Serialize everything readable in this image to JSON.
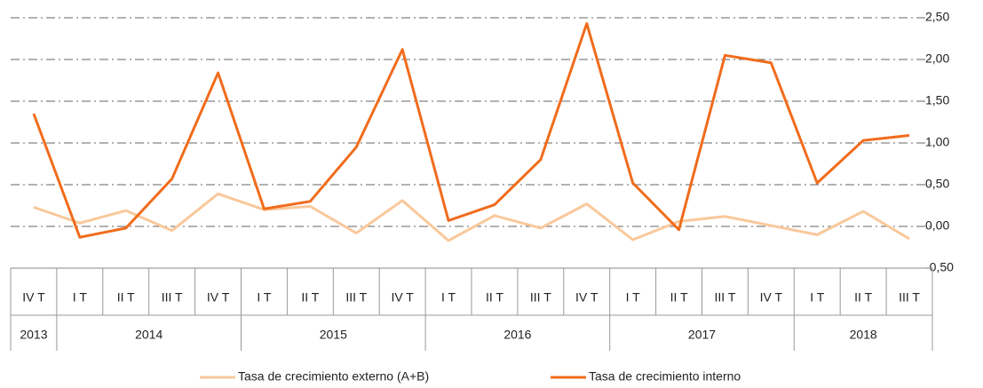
{
  "chart_data": {
    "type": "line",
    "categories": [
      "IV T",
      "I T",
      "II T",
      "III T",
      "IV T",
      "I T",
      "II T",
      "III T",
      "IV T",
      "I T",
      "II T",
      "III T",
      "IV T",
      "I T",
      "II T",
      "III T",
      "IV T",
      "I T",
      "II T",
      "III T"
    ],
    "year_groups": [
      {
        "label": "2013",
        "count": 1
      },
      {
        "label": "2014",
        "count": 4
      },
      {
        "label": "2015",
        "count": 4
      },
      {
        "label": "2016",
        "count": 4
      },
      {
        "label": "2017",
        "count": 4
      },
      {
        "label": "2018",
        "count": 3
      }
    ],
    "series": [
      {
        "name": "Tasa de crecimiento externo (A+B)",
        "color": "#f9c89b",
        "values": [
          0.23,
          0.04,
          0.19,
          -0.05,
          0.39,
          0.2,
          0.24,
          -0.08,
          0.31,
          -0.17,
          0.13,
          -0.02,
          0.27,
          -0.16,
          0.06,
          0.12,
          0.01,
          -0.1,
          0.18,
          -0.15
        ]
      },
      {
        "name": "Tasa de crecimiento interno",
        "color": "#f06c1c",
        "values": [
          1.35,
          -0.13,
          -0.02,
          0.57,
          1.84,
          0.21,
          0.3,
          0.95,
          2.12,
          0.07,
          0.26,
          0.8,
          2.43,
          0.52,
          -0.04,
          2.05,
          1.96,
          0.52,
          1.03,
          1.09
        ]
      }
    ],
    "ylim": [
      -0.5,
      2.5
    ],
    "yticks": [
      {
        "value": -0.5,
        "label": "-0,50"
      },
      {
        "value": 0,
        "label": "0,00"
      },
      {
        "value": 0.5,
        "label": "0,50"
      },
      {
        "value": 1,
        "label": "1,00"
      },
      {
        "value": 1.5,
        "label": "1,50"
      },
      {
        "value": 2,
        "label": "2,00"
      },
      {
        "value": 2.5,
        "label": "2,50"
      }
    ],
    "grid": true,
    "legend": "bottom"
  }
}
